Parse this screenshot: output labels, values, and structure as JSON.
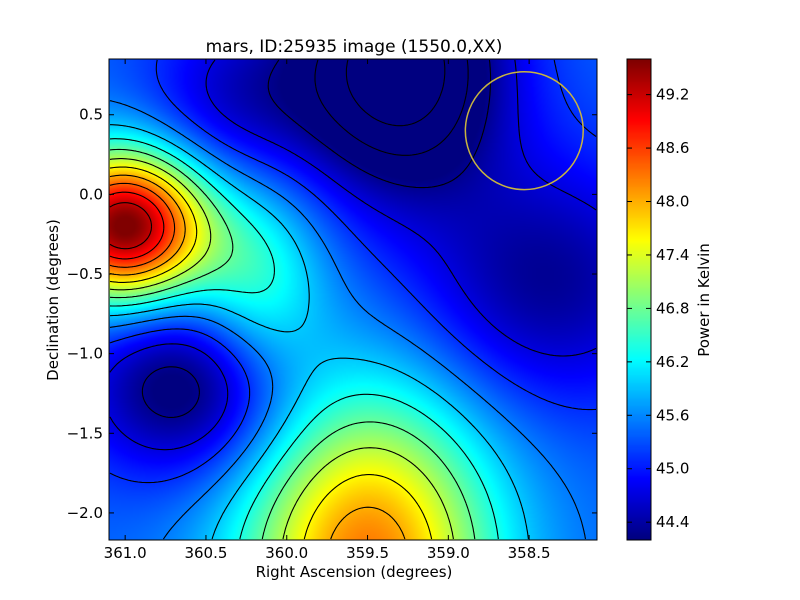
{
  "chart_data": {
    "type": "heatmap",
    "title": "mars, ID:25935 image (1550.0,XX)",
    "xlabel": "Right Ascension (degrees)",
    "ylabel": "Declination (degrees)",
    "colorbar_label": "Power in Kelvin",
    "xlim": [
      361.1,
      358.08
    ],
    "ylim": [
      -2.17,
      0.85
    ],
    "zlim": [
      44.2,
      49.6
    ],
    "colormap": "jet",
    "contours": "black lines, 15 levels",
    "x_ticks": [
      361.0,
      360.5,
      360.0,
      359.5,
      359.0,
      358.5
    ],
    "x_tick_labels": [
      "361.0",
      "360.5",
      "360.0",
      "359.5",
      "359.0",
      "358.5"
    ],
    "y_ticks": [
      0.5,
      0.0,
      -0.5,
      -1.0,
      -1.5,
      -2.0
    ],
    "y_tick_labels": [
      "0.5",
      "0.0",
      "−0.5",
      "−1.0",
      "−1.5",
      "−2.0"
    ],
    "colorbar_ticks": [
      49.2,
      48.6,
      48.0,
      47.4,
      46.8,
      46.2,
      45.6,
      45.0,
      44.4
    ],
    "colorbar_tick_labels": [
      "49.2",
      "48.6",
      "48.0",
      "47.4",
      "46.8",
      "46.2",
      "45.6",
      "45.0",
      "44.4"
    ],
    "field": [
      {
        "x": 361.0,
        "y": -0.2,
        "amp": 4.3,
        "sx": 0.35,
        "sy": 0.33
      },
      {
        "x": 359.5,
        "y": -2.3,
        "amp": 2.9,
        "sx": 0.55,
        "sy": 0.75
      },
      {
        "x": 359.3,
        "y": 0.8,
        "amp": -2.3,
        "sx": 0.45,
        "sy": 0.55
      },
      {
        "x": 358.4,
        "y": -0.55,
        "amp": -1.1,
        "sx": 0.6,
        "sy": 0.55
      },
      {
        "x": 360.6,
        "y": -1.2,
        "amp": -1.5,
        "sx": 0.45,
        "sy": 0.4
      },
      {
        "x": 360.2,
        "y": -0.55,
        "amp": 1.1,
        "sx": 0.3,
        "sy": 0.45
      },
      {
        "x": 360.3,
        "y": 0.6,
        "amp": -0.8,
        "sx": 0.4,
        "sy": 0.4
      }
    ],
    "field_base": 45.4,
    "circle": {
      "ra": 358.53,
      "dec": 0.4,
      "radius": 0.37,
      "color": "#c8b440"
    }
  }
}
